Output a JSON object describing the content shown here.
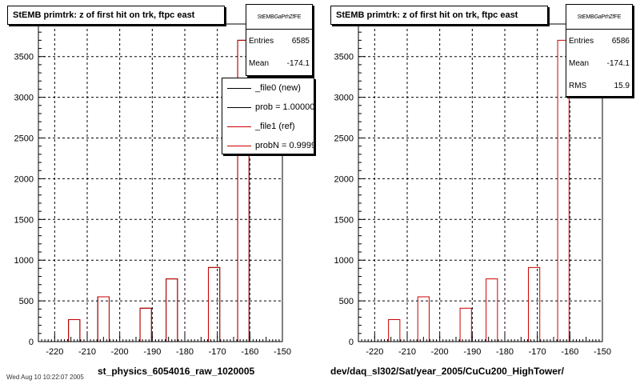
{
  "chart_data": [
    {
      "type": "bar",
      "title": "StEMB primtrk: z of first hit on trk, ftpc east",
      "xlabel": "st_physics_6054016_raw_1020005",
      "ylabel": "",
      "xlim": [
        -225,
        -150
      ],
      "ylim": [
        0,
        3900
      ],
      "xticks": [
        -220,
        -210,
        -200,
        -190,
        -180,
        -170,
        -160,
        -150
      ],
      "yticks": [
        0,
        500,
        1000,
        1500,
        2000,
        2500,
        3000,
        3500
      ],
      "grid": true,
      "x": [
        -214,
        -205,
        -192,
        -184,
        -171,
        -162
      ],
      "series": [
        {
          "name": "_file0 (new)",
          "color": "#000000",
          "values": [
            270,
            550,
            410,
            770,
            910,
            3700
          ]
        },
        {
          "name": "_file1 (ref)",
          "color": "#cc0000",
          "values": [
            270,
            550,
            410,
            770,
            910,
            3700
          ]
        }
      ],
      "stats": {
        "name": "StEMBGaPrhZfFE",
        "entries_label": "Entries",
        "entries": "6585",
        "mean_label": "Mean",
        "mean": "-174.1"
      },
      "legend": [
        {
          "text": "_file0 (new)",
          "color": "#000000"
        },
        {
          "text": "prob = 1.000000",
          "color": "#000000"
        },
        {
          "text": "_file1 (ref)",
          "color": "#cc0000"
        },
        {
          "text": "probN = 0.999970",
          "color": "#cc0000"
        }
      ]
    },
    {
      "type": "bar",
      "title": "StEMB primtrk: z of first hit on trk, ftpc east",
      "xlabel": "dev/daq_sl302/Sat/year_2005/CuCu200_HighTower/",
      "ylabel": "",
      "xlim": [
        -225,
        -150
      ],
      "ylim": [
        0,
        3900
      ],
      "xticks": [
        -220,
        -210,
        -200,
        -190,
        -180,
        -170,
        -160,
        -150
      ],
      "yticks": [
        0,
        500,
        1000,
        1500,
        2000,
        2500,
        3000,
        3500
      ],
      "grid": true,
      "x": [
        -214,
        -205,
        -192,
        -184,
        -171,
        -162
      ],
      "series": [
        {
          "color": "#cc0000",
          "values": [
            270,
            550,
            410,
            770,
            910,
            3700
          ]
        }
      ],
      "stats": {
        "name": "StEMBGaPrhZfFE",
        "entries_label": "Entries",
        "entries": "6586",
        "mean_label": "Mean",
        "mean": "-174.1",
        "rms_label": "RMS",
        "rms": "15.9"
      }
    }
  ],
  "footer": "Wed Aug 10 10:22:07 2005"
}
